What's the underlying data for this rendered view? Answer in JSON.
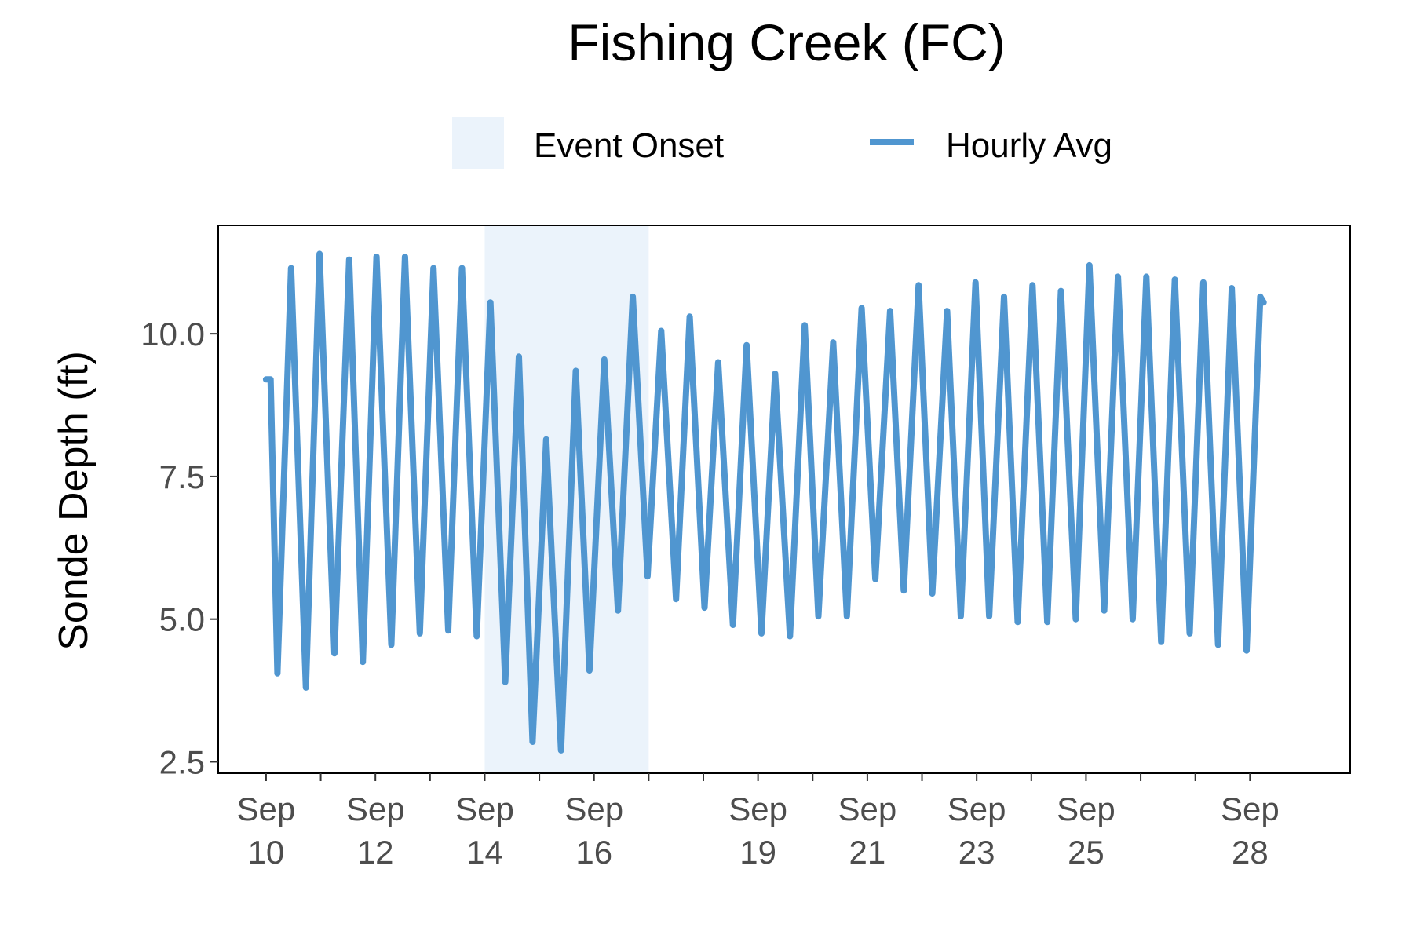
{
  "chart_data": {
    "type": "line",
    "title": "Fishing Creek (FC)",
    "xlabel": "",
    "ylabel": "Sonde Depth (ft)",
    "ylim": [
      2.3,
      11.9
    ],
    "xlim": [
      "2023-09-09 03:00",
      "2023-09-29 20:00"
    ],
    "y_ticks": [
      "2.5",
      "5.0",
      "7.5",
      "10.0"
    ],
    "y_tick_values": [
      2.5,
      5.0,
      7.5,
      10.0
    ],
    "x_ticks": [
      {
        "date": "2023-09-10",
        "line1": "Sep",
        "line2": "10"
      },
      {
        "date": "2023-09-12",
        "line1": "Sep",
        "line2": "12"
      },
      {
        "date": "2023-09-14",
        "line1": "Sep",
        "line2": "14"
      },
      {
        "date": "2023-09-16",
        "line1": "Sep",
        "line2": "16"
      },
      {
        "date": "2023-09-19",
        "line1": "Sep",
        "line2": "19"
      },
      {
        "date": "2023-09-21",
        "line1": "Sep",
        "line2": "21"
      },
      {
        "date": "2023-09-23",
        "line1": "Sep",
        "line2": "23"
      },
      {
        "date": "2023-09-25",
        "line1": "Sep",
        "line2": "25"
      },
      {
        "date": "2023-09-28",
        "line1": "Sep",
        "line2": "28"
      }
    ],
    "x_minor_ticks": [
      "2023-09-11",
      "2023-09-13",
      "2023-09-15",
      "2023-09-17",
      "2023-09-18",
      "2023-09-20",
      "2023-09-22",
      "2023-09-24",
      "2023-09-26",
      "2023-09-27"
    ],
    "grid": false,
    "legend_position": "top",
    "legend": [
      {
        "label": "Event Onset",
        "kind": "fill",
        "color": "#ebf3fb"
      },
      {
        "label": "Hourly Avg",
        "kind": "line",
        "color": "#5096d0"
      }
    ],
    "event_onset": {
      "start": "2023-09-14",
      "end": "2023-09-17"
    },
    "series": [
      {
        "name": "Hourly Avg",
        "color": "#5096d0",
        "points": [
          [
            "2023-09-10 00:00",
            9.2
          ],
          [
            "2023-09-10 02:00",
            9.2
          ],
          [
            "2023-09-10 05:00",
            4.05
          ],
          [
            "2023-09-10 11:00",
            11.15
          ],
          [
            "2023-09-10 17:30",
            3.8
          ],
          [
            "2023-09-10 23:30",
            11.4
          ],
          [
            "2023-09-11 06:00",
            4.4
          ],
          [
            "2023-09-11 12:30",
            11.3
          ],
          [
            "2023-09-11 18:30",
            4.25
          ],
          [
            "2023-09-12 00:30",
            11.35
          ],
          [
            "2023-09-12 07:00",
            4.55
          ],
          [
            "2023-09-12 13:00",
            11.35
          ],
          [
            "2023-09-12 19:30",
            4.75
          ],
          [
            "2023-09-13 01:30",
            11.15
          ],
          [
            "2023-09-13 08:00",
            4.8
          ],
          [
            "2023-09-13 14:00",
            11.15
          ],
          [
            "2023-09-13 20:30",
            4.7
          ],
          [
            "2023-09-14 02:30",
            10.55
          ],
          [
            "2023-09-14 09:00",
            3.9
          ],
          [
            "2023-09-14 15:00",
            9.6
          ],
          [
            "2023-09-14 21:00",
            2.85
          ],
          [
            "2023-09-15 03:00",
            8.15
          ],
          [
            "2023-09-15 09:30",
            2.7
          ],
          [
            "2023-09-15 16:00",
            9.35
          ],
          [
            "2023-09-15 22:00",
            4.1
          ],
          [
            "2023-09-16 04:30",
            9.55
          ],
          [
            "2023-09-16 10:30",
            5.15
          ],
          [
            "2023-09-16 17:00",
            10.65
          ],
          [
            "2023-09-16 23:30",
            5.75
          ],
          [
            "2023-09-17 05:30",
            10.05
          ],
          [
            "2023-09-17 12:00",
            5.35
          ],
          [
            "2023-09-17 18:00",
            10.3
          ],
          [
            "2023-09-18 00:30",
            5.2
          ],
          [
            "2023-09-18 06:30",
            9.5
          ],
          [
            "2023-09-18 13:00",
            4.9
          ],
          [
            "2023-09-18 19:00",
            9.8
          ],
          [
            "2023-09-19 01:30",
            4.75
          ],
          [
            "2023-09-19 07:30",
            9.3
          ],
          [
            "2023-09-19 14:00",
            4.7
          ],
          [
            "2023-09-19 20:30",
            10.15
          ],
          [
            "2023-09-20 02:30",
            5.05
          ],
          [
            "2023-09-20 09:00",
            9.85
          ],
          [
            "2023-09-20 15:00",
            5.05
          ],
          [
            "2023-09-20 21:30",
            10.45
          ],
          [
            "2023-09-21 03:30",
            5.7
          ],
          [
            "2023-09-21 10:00",
            10.4
          ],
          [
            "2023-09-21 16:00",
            5.5
          ],
          [
            "2023-09-21 22:30",
            10.85
          ],
          [
            "2023-09-22 04:30",
            5.45
          ],
          [
            "2023-09-22 11:00",
            10.4
          ],
          [
            "2023-09-22 17:00",
            5.05
          ],
          [
            "2023-09-22 23:30",
            10.9
          ],
          [
            "2023-09-23 05:30",
            5.05
          ],
          [
            "2023-09-23 12:00",
            10.65
          ],
          [
            "2023-09-23 18:00",
            4.95
          ],
          [
            "2023-09-24 00:30",
            10.85
          ],
          [
            "2023-09-24 07:00",
            4.95
          ],
          [
            "2023-09-24 13:00",
            10.75
          ],
          [
            "2023-09-24 19:30",
            5.0
          ],
          [
            "2023-09-25 01:30",
            11.2
          ],
          [
            "2023-09-25 08:00",
            5.15
          ],
          [
            "2023-09-25 14:00",
            11.0
          ],
          [
            "2023-09-25 20:30",
            5.0
          ],
          [
            "2023-09-26 02:30",
            11.0
          ],
          [
            "2023-09-26 09:00",
            4.6
          ],
          [
            "2023-09-26 15:00",
            10.95
          ],
          [
            "2023-09-26 21:30",
            4.75
          ],
          [
            "2023-09-27 03:30",
            10.9
          ],
          [
            "2023-09-27 10:00",
            4.55
          ],
          [
            "2023-09-27 16:00",
            10.8
          ],
          [
            "2023-09-27 22:30",
            4.45
          ],
          [
            "2023-09-28 04:30",
            10.65
          ],
          [
            "2023-09-28 06:00",
            10.55
          ]
        ]
      }
    ]
  }
}
